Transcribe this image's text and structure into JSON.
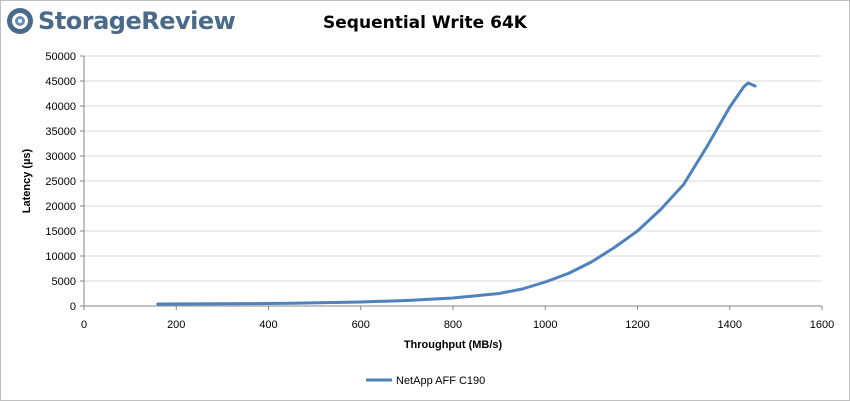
{
  "brand": {
    "name": "StorageReview"
  },
  "chart_data": {
    "type": "line",
    "title": "Sequential Write 64K",
    "xlabel": "Throughput (MB/s)",
    "ylabel": "Latency (µs)",
    "xlim": [
      0,
      1600
    ],
    "ylim": [
      0,
      50000
    ],
    "xticks": [
      0,
      200,
      400,
      600,
      800,
      1000,
      1200,
      1400,
      1600
    ],
    "yticks": [
      0,
      5000,
      10000,
      15000,
      20000,
      25000,
      30000,
      35000,
      40000,
      45000,
      50000
    ],
    "grid": "horizontal",
    "legend": "bottom",
    "colors": {
      "series": "#4f81bd",
      "grid": "#d9d9d9",
      "axis": "#868686"
    },
    "series": [
      {
        "name": "NetApp AFF C190",
        "x": [
          160,
          300,
          450,
          600,
          700,
          800,
          900,
          950,
          1000,
          1050,
          1100,
          1150,
          1200,
          1250,
          1300,
          1350,
          1400,
          1430,
          1440,
          1455
        ],
        "y": [
          400,
          450,
          550,
          800,
          1100,
          1600,
          2500,
          3400,
          4800,
          6500,
          8800,
          11700,
          15000,
          19300,
          24300,
          31800,
          39800,
          43800,
          44600,
          44000
        ]
      }
    ]
  }
}
